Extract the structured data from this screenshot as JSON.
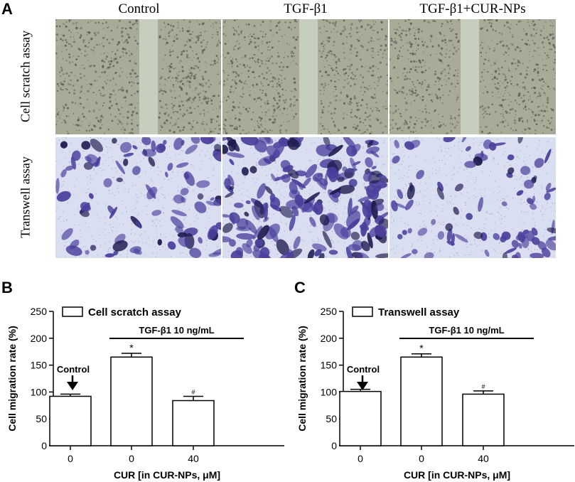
{
  "panel_a": {
    "letter": "A",
    "columns": [
      "Control",
      "TGF-β1",
      "TGF-β1+CUR-NPs"
    ],
    "rows": [
      "Cell scratch assay",
      "Transwell assay"
    ],
    "colors": {
      "scratch_bg": "#a9aa97",
      "scratch_cells": "#55554a",
      "gap": "#c9d3c2",
      "transwell_bg": "#d9dff0",
      "transwell_cells": "#4b3f9c",
      "transwell_dark": "#1e1a4f"
    }
  },
  "chart_data": [
    {
      "type": "bar",
      "letter": "B",
      "legend": "Cell scratch assay",
      "bracket_label": "TGF-β1 10 ng/mL",
      "annotation": "Control",
      "categories": [
        "0",
        "0",
        "40"
      ],
      "values": [
        92,
        165,
        84
      ],
      "errors": [
        4,
        7,
        8
      ],
      "markers": [
        "",
        "*",
        "#"
      ],
      "ylabel": "Cell migration rate (%)",
      "xlabel": "CUR [in CUR-NPs, μM]",
      "ylim": [
        0,
        250
      ],
      "yticks": [
        0,
        50,
        100,
        150,
        200,
        250
      ],
      "legend_position": "top-left"
    },
    {
      "type": "bar",
      "letter": "C",
      "legend": "Transwell assay",
      "bracket_label": "TGF-β1 10 ng/mL",
      "annotation": "Control",
      "categories": [
        "0",
        "0",
        "40"
      ],
      "values": [
        101,
        165,
        96
      ],
      "errors": [
        4,
        6,
        6
      ],
      "markers": [
        "",
        "*",
        "#"
      ],
      "ylabel": "Cell migration rate (%)",
      "xlabel": "CUR [in CUR-NPs, μM]",
      "ylim": [
        0,
        250
      ],
      "yticks": [
        0,
        50,
        100,
        150,
        200,
        250
      ],
      "legend_position": "top-left"
    }
  ]
}
